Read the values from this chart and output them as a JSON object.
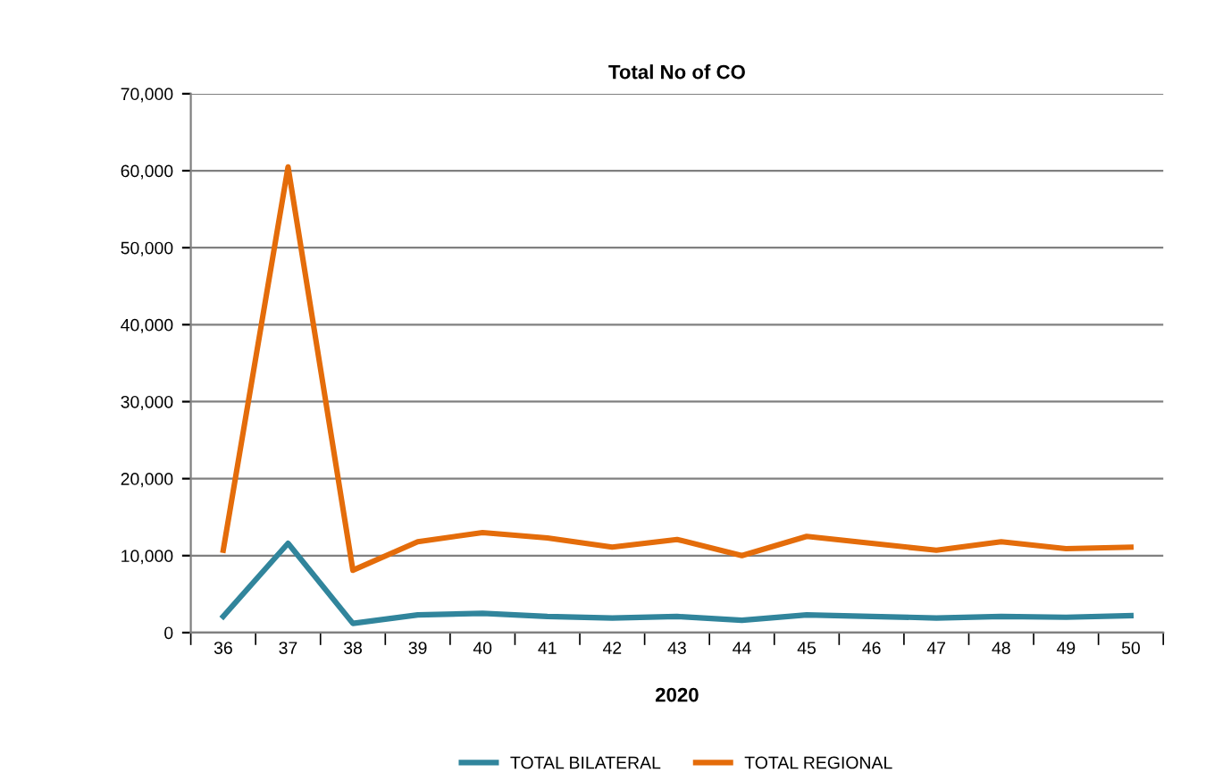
{
  "chart_data": {
    "type": "line",
    "title": "Total No of CO",
    "xlabel": "2020",
    "categories": [
      "36",
      "37",
      "38",
      "39",
      "40",
      "41",
      "42",
      "43",
      "44",
      "45",
      "46",
      "47",
      "48",
      "49",
      "50"
    ],
    "series": [
      {
        "name": "TOTAL BILATERAL",
        "color": "#31859c",
        "values": [
          2100,
          11600,
          1200,
          2300,
          2500,
          2100,
          1900,
          2100,
          1600,
          2300,
          2100,
          1900,
          2100,
          2000,
          2200
        ]
      },
      {
        "name": "TOTAL REGIONAL",
        "color": "#e46c0a",
        "values": [
          10700,
          60500,
          8100,
          11800,
          13000,
          12300,
          11100,
          12100,
          10000,
          12500,
          11600,
          10700,
          11800,
          10900,
          11100
        ]
      }
    ],
    "ylim": [
      0,
      70000
    ],
    "yticks": [
      {
        "value": 0,
        "label": "0"
      },
      {
        "value": 10000,
        "label": "10,000"
      },
      {
        "value": 20000,
        "label": "20,000"
      },
      {
        "value": 30000,
        "label": "30,000"
      },
      {
        "value": 40000,
        "label": "40,000"
      },
      {
        "value": 50000,
        "label": "50,000"
      },
      {
        "value": 60000,
        "label": "60,000"
      },
      {
        "value": 70000,
        "label": "70,000"
      }
    ],
    "grid": "y",
    "legend": "bottom",
    "marker": "none",
    "line_style": "solid"
  }
}
